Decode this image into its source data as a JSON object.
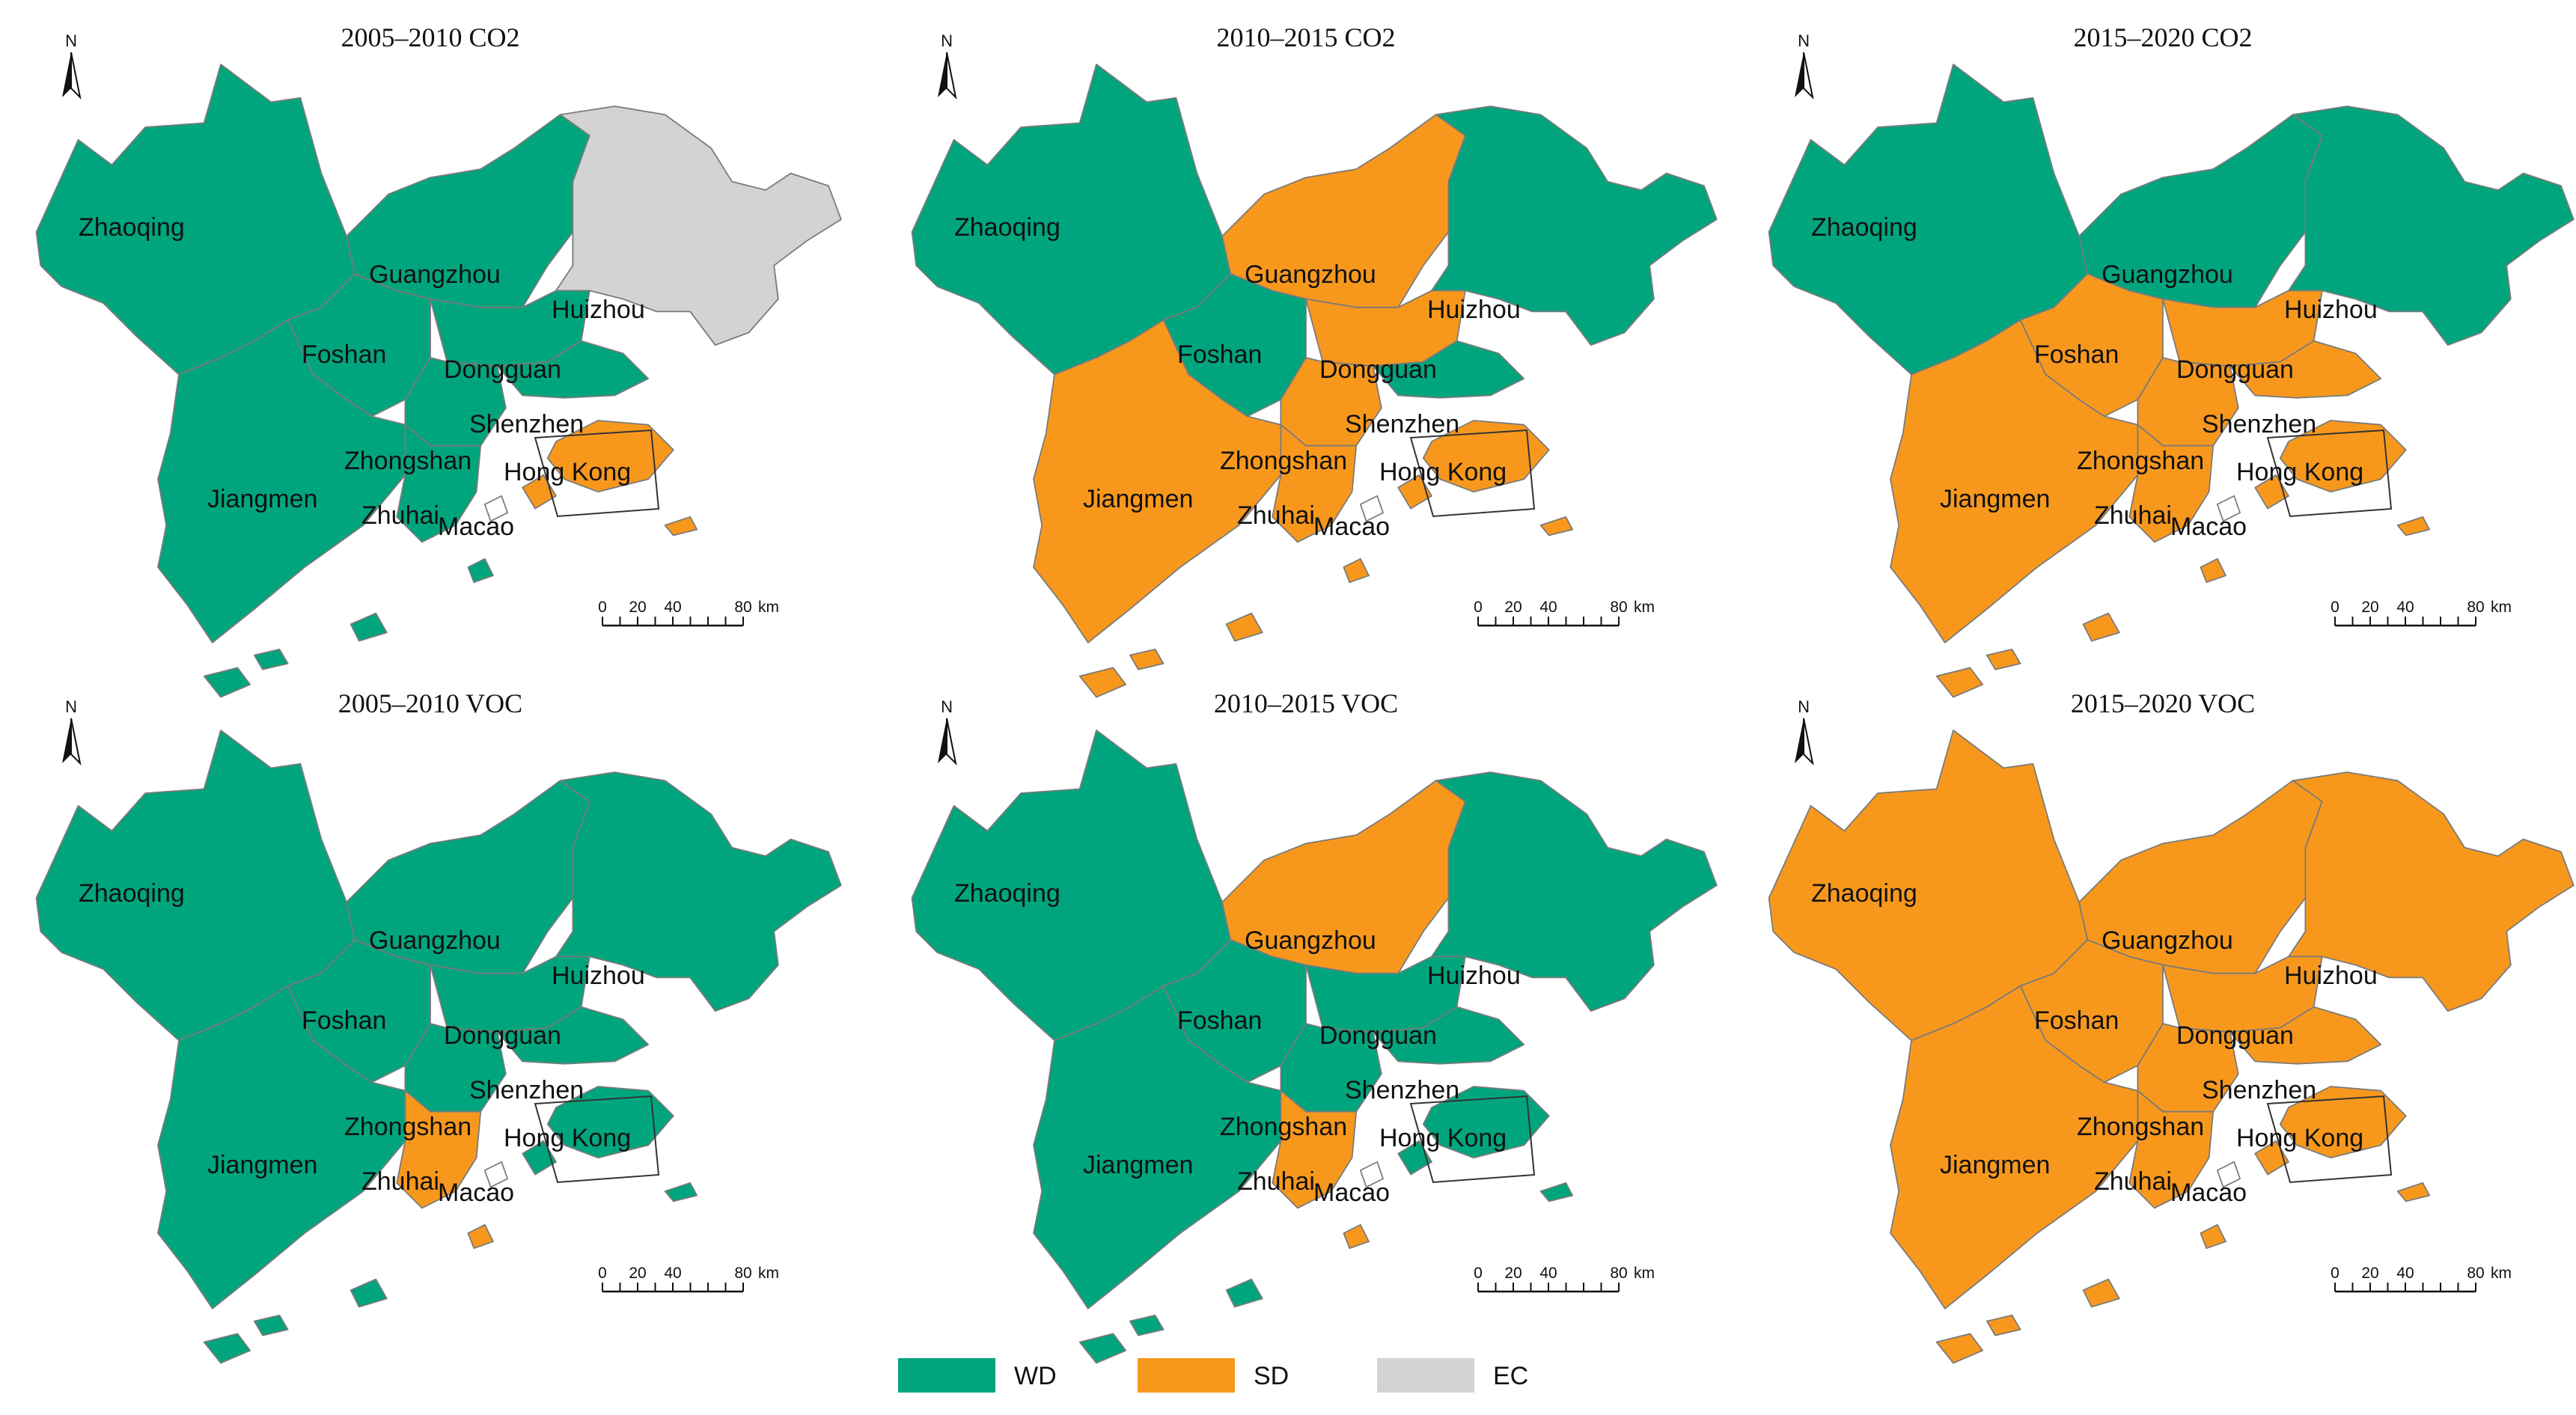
{
  "legend": [
    {
      "code": "WD",
      "label": "WD",
      "color": "#00A57E"
    },
    {
      "code": "SD",
      "label": "SD",
      "color": "#F7981D"
    },
    {
      "code": "EC",
      "label": "EC",
      "color": "#D3D3D3"
    }
  ],
  "north_label": "N",
  "scale_bar": {
    "ticks": [
      "0",
      "20",
      "40",
      "80"
    ],
    "unit": "km"
  },
  "city_labels": {
    "zhaoqing": "Zhaoqing",
    "guangzhou": "Guangzhou",
    "huizhou": "Huizhou",
    "foshan": "Foshan",
    "dongguan": "Dongguan",
    "shenzhen": "Shenzhen",
    "zhongshan": "Zhongshan",
    "jiangmen": "Jiangmen",
    "zhuhai": "Zhuhai",
    "hongkong": "Hong Kong",
    "macao": "Macao"
  },
  "panels": [
    {
      "title": "2005–2010  CO2",
      "regions": {
        "zhaoqing": "WD",
        "guangzhou": "WD",
        "huizhou": "EC",
        "foshan": "WD",
        "dongguan": "WD",
        "shenzhen": "WD",
        "zhongshan": "WD",
        "jiangmen": "WD",
        "zhuhai": "WD",
        "hongkong": "SD"
      }
    },
    {
      "title": "2010–2015  CO2",
      "regions": {
        "zhaoqing": "WD",
        "guangzhou": "SD",
        "huizhou": "WD",
        "foshan": "WD",
        "dongguan": "SD",
        "shenzhen": "WD",
        "zhongshan": "SD",
        "jiangmen": "SD",
        "zhuhai": "SD",
        "hongkong": "SD"
      }
    },
    {
      "title": "2015–2020  CO2",
      "regions": {
        "zhaoqing": "WD",
        "guangzhou": "WD",
        "huizhou": "WD",
        "foshan": "SD",
        "dongguan": "SD",
        "shenzhen": "SD",
        "zhongshan": "SD",
        "jiangmen": "SD",
        "zhuhai": "SD",
        "hongkong": "SD"
      }
    },
    {
      "title": "2005–2010  VOC",
      "regions": {
        "zhaoqing": "WD",
        "guangzhou": "WD",
        "huizhou": "WD",
        "foshan": "WD",
        "dongguan": "WD",
        "shenzhen": "WD",
        "zhongshan": "WD",
        "jiangmen": "WD",
        "zhuhai": "SD",
        "hongkong": "WD"
      }
    },
    {
      "title": "2010–2015  VOC",
      "regions": {
        "zhaoqing": "WD",
        "guangzhou": "SD",
        "huizhou": "WD",
        "foshan": "WD",
        "dongguan": "WD",
        "shenzhen": "WD",
        "zhongshan": "WD",
        "jiangmen": "WD",
        "zhuhai": "SD",
        "hongkong": "WD"
      }
    },
    {
      "title": "2015–2020  VOC",
      "regions": {
        "zhaoqing": "SD",
        "guangzhou": "SD",
        "huizhou": "SD",
        "foshan": "SD",
        "dongguan": "SD",
        "shenzhen": "SD",
        "zhongshan": "SD",
        "jiangmen": "SD",
        "zhuhai": "SD",
        "hongkong": "SD"
      }
    }
  ]
}
